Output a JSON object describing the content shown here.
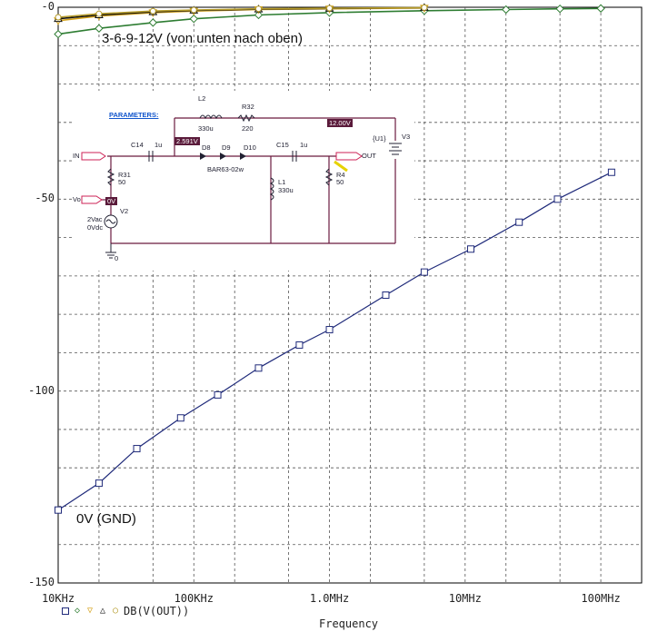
{
  "chart_data": {
    "type": "line",
    "xlabel": "Frequency",
    "x_scale": "log",
    "xlim": [
      10000,
      200000000
    ],
    "ylim": [
      -150,
      0
    ],
    "y_ticks": [
      {
        "value": 0,
        "label": "-0"
      },
      {
        "value": -50,
        "label": "-50"
      },
      {
        "value": -100,
        "label": "-100"
      },
      {
        "value": -150,
        "label": "-150"
      }
    ],
    "x_ticks": [
      {
        "value": 10000,
        "label": "10KHz"
      },
      {
        "value": 100000,
        "label": "100KHz"
      },
      {
        "value": 1000000,
        "label": "1.0MHz"
      },
      {
        "value": 10000000,
        "label": "10MHz"
      },
      {
        "value": 100000000,
        "label": "100MHz"
      }
    ],
    "grid": true,
    "legend_label": "DB(V(OUT))",
    "series": [
      {
        "color": "#1f2a7a",
        "marker": "square",
        "x": [
          10000,
          20000,
          38000,
          80000,
          150000,
          300000,
          600000,
          1000000,
          2600000,
          5000000,
          11000000,
          25000000,
          48000000,
          120000000
        ],
        "y": [
          -131,
          -124,
          -115,
          -107,
          -101,
          -94,
          -88,
          -84,
          -75,
          -69,
          -63,
          -56,
          -50,
          -43
        ]
      },
      {
        "color": "#2e7d32",
        "marker": "diamond",
        "x": [
          10000,
          20000,
          50000,
          100000,
          300000,
          1000000,
          5000000,
          20000000,
          50000000,
          100000000
        ],
        "y": [
          -7.0,
          -5.5,
          -4.0,
          -3.0,
          -2.0,
          -1.4,
          -0.9,
          -0.6,
          -0.4,
          -0.3
        ]
      },
      {
        "color": "#d4a017",
        "marker": "triangle-down",
        "x": [
          10000,
          20000,
          50000,
          100000,
          300000,
          1000000,
          5000000
        ],
        "y": [
          -3.5,
          -2.3,
          -1.4,
          -1.0,
          -0.6,
          -0.4,
          -0.2
        ]
      },
      {
        "color": "#111111",
        "marker": "triangle",
        "x": [
          10000,
          20000,
          50000,
          100000,
          300000,
          1000000,
          5000000
        ],
        "y": [
          -3.0,
          -2.0,
          -1.2,
          -0.8,
          -0.5,
          -0.3,
          -0.1
        ]
      },
      {
        "color": "#b59b2a",
        "marker": "circle",
        "x": [
          10000,
          20000,
          50000,
          100000,
          300000,
          1000000,
          5000000
        ],
        "y": [
          -2.6,
          -1.7,
          -1.0,
          -0.7,
          -0.4,
          -0.25,
          -0.1
        ]
      }
    ],
    "annotations": [
      "3-6-9-12V (von unten nach oben)",
      "0V (GND)"
    ]
  },
  "schematic": {
    "parameters": "PARAMETERS:",
    "l2": "L2",
    "l2_val": "330u",
    "r32": "R32",
    "r32_val": "220",
    "v_top": "12.00V",
    "u1": "{U1}",
    "v3": "V3",
    "in_label": "IN",
    "c14": "C14",
    "c14_val": "1u",
    "v_node": "2.591V",
    "d8": "D8",
    "d9": "D9",
    "d10": "D10",
    "diode_part": "BAR63-02w",
    "c15": "C15",
    "c15_val": "1u",
    "out_label": "OUT",
    "r31": "R31",
    "r31_val": "50",
    "vo_label": "Vo",
    "v0_box": "0V",
    "l1": "L1",
    "l1_val": "330u",
    "r4": "R4",
    "r4_val": "50",
    "v2": "V2",
    "v2_vac": "2Vac",
    "v2_vdc": "0Vdc",
    "gnd": "0"
  }
}
